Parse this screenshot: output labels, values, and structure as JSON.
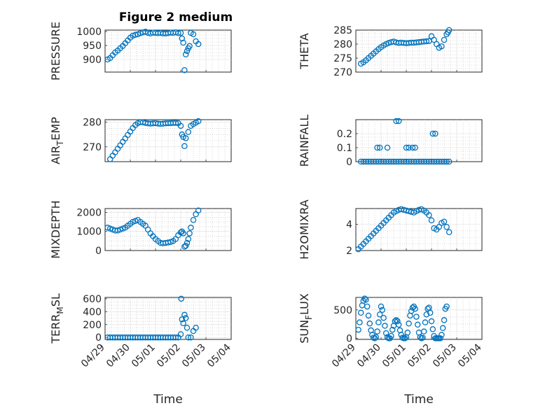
{
  "figure": {
    "title": "Figure 2 medium",
    "marker_color": "#0072BD"
  },
  "chart_data": [
    {
      "type": "scatter",
      "ylabel": "PRESSURE",
      "ylabel_sub": "",
      "ylabel_tail": "",
      "xlabel": "",
      "xlim": [
        0,
        5
      ],
      "ylim": [
        855,
        1005
      ],
      "yticks": [
        900,
        950,
        1000
      ],
      "xticks": [],
      "grid": true,
      "x": [
        0.1,
        0.2,
        0.3,
        0.4,
        0.5,
        0.6,
        0.7,
        0.8,
        0.9,
        1.0,
        1.1,
        1.2,
        1.3,
        1.4,
        1.5,
        1.6,
        1.7,
        1.8,
        1.9,
        2.0,
        2.1,
        2.2,
        2.3,
        2.4,
        2.5,
        2.6,
        2.7,
        2.8,
        2.9,
        3.0,
        3.05,
        3.1,
        3.15,
        3.2,
        3.25,
        3.3,
        3.35,
        3.4,
        3.5,
        3.6,
        3.7
      ],
      "y": [
        900,
        905,
        915,
        925,
        932,
        940,
        948,
        958,
        968,
        978,
        985,
        988,
        990,
        994,
        997,
        999,
        995,
        993,
        996,
        995,
        994,
        995,
        993,
        993,
        994,
        996,
        995,
        997,
        994,
        995,
        975,
        960,
        862,
        918,
        930,
        940,
        948,
        995,
        990,
        965,
        955
      ]
    },
    {
      "type": "scatter",
      "ylabel": "THETA",
      "ylabel_sub": "",
      "ylabel_tail": "",
      "xlabel": "",
      "xlim": [
        0,
        5
      ],
      "ylim": [
        270,
        285
      ],
      "yticks": [
        270,
        275,
        280,
        285
      ],
      "xticks": [],
      "grid": true,
      "x": [
        0.2,
        0.3,
        0.4,
        0.5,
        0.6,
        0.7,
        0.8,
        0.9,
        1.0,
        1.1,
        1.2,
        1.3,
        1.4,
        1.5,
        1.6,
        1.7,
        1.8,
        1.9,
        2.0,
        2.1,
        2.2,
        2.3,
        2.4,
        2.5,
        2.6,
        2.7,
        2.8,
        2.9,
        3.0,
        3.1,
        3.2,
        3.3,
        3.4,
        3.5,
        3.6,
        3.65,
        3.7
      ],
      "y": [
        273,
        273.5,
        274.2,
        275,
        275.8,
        276.6,
        277.4,
        278.2,
        278.9,
        279.5,
        280,
        280.4,
        280.7,
        280.9,
        280.6,
        280.4,
        280.5,
        280.4,
        280.3,
        280.4,
        280.5,
        280.5,
        280.6,
        280.7,
        280.8,
        280.9,
        281,
        281.1,
        282.8,
        281.5,
        280,
        278.7,
        279.2,
        281.5,
        283.5,
        284.2,
        285
      ]
    },
    {
      "type": "scatter",
      "ylabel": "AIR",
      "ylabel_sub": "T",
      "ylabel_tail": "EMP",
      "xlabel": "",
      "xlim": [
        0,
        5
      ],
      "ylim": [
        264,
        281
      ],
      "yticks": [
        270,
        280
      ],
      "xticks": [],
      "grid": true,
      "x": [
        0.2,
        0.3,
        0.4,
        0.5,
        0.6,
        0.7,
        0.8,
        0.9,
        1.0,
        1.1,
        1.2,
        1.3,
        1.4,
        1.5,
        1.6,
        1.7,
        1.8,
        1.9,
        2.0,
        2.1,
        2.2,
        2.3,
        2.4,
        2.5,
        2.6,
        2.7,
        2.8,
        2.9,
        3.0,
        3.05,
        3.1,
        3.15,
        3.2,
        3.3,
        3.4,
        3.5,
        3.6,
        3.7
      ],
      "y": [
        265,
        266.4,
        267.8,
        269.2,
        270.6,
        272,
        273.4,
        274.8,
        276.2,
        277.6,
        278.8,
        279.6,
        280,
        279.9,
        279.7,
        279.5,
        279.4,
        279.5,
        279.6,
        279.4,
        279.3,
        279.4,
        279.5,
        279.6,
        279.6,
        279.7,
        279.7,
        279.6,
        278.5,
        275,
        274,
        270.3,
        273.5,
        276,
        278.5,
        279.2,
        279.8,
        280.4
      ]
    },
    {
      "type": "scatter",
      "ylabel": "RAINFALL",
      "ylabel_sub": "",
      "ylabel_tail": "",
      "xlabel": "",
      "xlim": [
        0,
        5
      ],
      "ylim": [
        0,
        0.3
      ],
      "yticks": [
        0,
        0.1,
        0.2
      ],
      "xticks": [],
      "grid": true,
      "x": [
        0.2,
        0.3,
        0.4,
        0.5,
        0.6,
        0.7,
        0.8,
        0.9,
        1.0,
        1.1,
        1.2,
        1.3,
        1.4,
        1.5,
        1.6,
        1.7,
        1.8,
        1.9,
        2.0,
        2.1,
        2.2,
        2.3,
        2.4,
        2.5,
        2.6,
        2.7,
        2.8,
        2.9,
        3.0,
        3.1,
        3.2,
        3.3,
        3.4,
        3.5,
        3.6,
        3.7,
        0.85,
        0.95,
        1.25,
        1.6,
        1.7,
        2.0,
        2.1,
        2.25,
        2.35,
        3.05,
        3.15
      ],
      "y": [
        0,
        0,
        0,
        0,
        0,
        0,
        0,
        0,
        0,
        0,
        0,
        0,
        0,
        0,
        0,
        0,
        0,
        0,
        0,
        0,
        0,
        0,
        0,
        0,
        0,
        0,
        0,
        0,
        0,
        0,
        0,
        0,
        0,
        0,
        0,
        0,
        0.1,
        0.1,
        0.1,
        0.29,
        0.29,
        0.1,
        0.1,
        0.1,
        0.1,
        0.2,
        0.2
      ]
    },
    {
      "type": "scatter",
      "ylabel": "MIXDEPTH",
      "ylabel_sub": "",
      "ylabel_tail": "",
      "xlabel": "",
      "xlim": [
        0,
        5
      ],
      "ylim": [
        0,
        2200
      ],
      "yticks": [
        0,
        1000,
        2000
      ],
      "xticks": [],
      "grid": true,
      "x": [
        0.1,
        0.2,
        0.3,
        0.4,
        0.5,
        0.6,
        0.7,
        0.8,
        0.9,
        1.0,
        1.1,
        1.2,
        1.3,
        1.4,
        1.5,
        1.6,
        1.7,
        1.8,
        1.9,
        2.0,
        2.1,
        2.2,
        2.3,
        2.4,
        2.5,
        2.6,
        2.7,
        2.8,
        2.9,
        3.0,
        3.05,
        3.1,
        3.15,
        3.2,
        3.25,
        3.3,
        3.35,
        3.4,
        3.5,
        3.6,
        3.7
      ],
      "y": [
        1200,
        1150,
        1100,
        1050,
        1050,
        1100,
        1150,
        1200,
        1300,
        1400,
        1500,
        1550,
        1600,
        1500,
        1400,
        1300,
        1100,
        900,
        750,
        600,
        500,
        400,
        380,
        400,
        420,
        450,
        500,
        600,
        800,
        950,
        1000,
        900,
        200,
        250,
        400,
        600,
        900,
        1200,
        1600,
        1900,
        2100
      ]
    },
    {
      "type": "scatter",
      "ylabel": "H2OMIXRA",
      "ylabel_sub": "",
      "ylabel_tail": "",
      "xlabel": "",
      "xlim": [
        0,
        5
      ],
      "ylim": [
        2,
        5.2
      ],
      "yticks": [
        2,
        4
      ],
      "xticks": [],
      "grid": true,
      "x": [
        0.1,
        0.2,
        0.3,
        0.4,
        0.5,
        0.6,
        0.7,
        0.8,
        0.9,
        1.0,
        1.1,
        1.2,
        1.3,
        1.4,
        1.5,
        1.6,
        1.7,
        1.8,
        1.9,
        2.0,
        2.1,
        2.2,
        2.3,
        2.4,
        2.5,
        2.6,
        2.7,
        2.8,
        2.9,
        3.0,
        3.1,
        3.2,
        3.3,
        3.4,
        3.5,
        3.6,
        3.7
      ],
      "y": [
        2.1,
        2.3,
        2.5,
        2.7,
        2.9,
        3.1,
        3.3,
        3.5,
        3.7,
        3.9,
        4.1,
        4.3,
        4.5,
        4.7,
        4.9,
        5.0,
        5.1,
        5.15,
        5.1,
        5.05,
        5.0,
        4.95,
        4.9,
        5.0,
        5.1,
        5.15,
        5.05,
        4.9,
        4.7,
        4.3,
        3.7,
        3.6,
        3.8,
        4.1,
        4.2,
        3.8,
        3.4
      ]
    },
    {
      "type": "scatter",
      "ylabel": "TERR",
      "ylabel_sub": "M",
      "ylabel_tail": "SL",
      "xlabel": "Time",
      "xlim": [
        0,
        5
      ],
      "ylim": [
        -30,
        620
      ],
      "yticks": [
        0,
        200,
        400,
        600
      ],
      "xticks": [
        "04/29",
        "04/30",
        "05/01",
        "05/02",
        "05/03",
        "05/04"
      ],
      "grid": true,
      "x": [
        0.1,
        0.2,
        0.3,
        0.4,
        0.5,
        0.6,
        0.7,
        0.8,
        0.9,
        1.0,
        1.1,
        1.2,
        1.3,
        1.4,
        1.5,
        1.6,
        1.7,
        1.8,
        1.9,
        2.0,
        2.1,
        2.2,
        2.3,
        2.4,
        2.5,
        2.6,
        2.7,
        2.8,
        2.9,
        3.0,
        3.02,
        3.05,
        3.1,
        3.15,
        3.2,
        3.25,
        3.3,
        3.4,
        3.5,
        3.6
      ],
      "y": [
        0,
        0,
        0,
        0,
        0,
        0,
        0,
        0,
        0,
        0,
        0,
        0,
        0,
        0,
        0,
        0,
        0,
        0,
        0,
        0,
        0,
        0,
        0,
        0,
        0,
        0,
        0,
        0,
        0,
        50,
        600,
        280,
        220,
        350,
        300,
        150,
        0,
        0,
        100,
        150
      ]
    },
    {
      "type": "scatter",
      "ylabel": "SUN",
      "ylabel_sub": "F",
      "ylabel_tail": "LUX",
      "xlabel": "Time",
      "xlim": [
        0,
        5
      ],
      "ylim": [
        -20,
        720
      ],
      "yticks": [
        0,
        500
      ],
      "xticks": [
        "04/29",
        "04/30",
        "05/01",
        "05/02",
        "05/03",
        "05/04"
      ],
      "grid": true,
      "x": [
        0.1,
        0.15,
        0.2,
        0.25,
        0.3,
        0.35,
        0.4,
        0.45,
        0.5,
        0.55,
        0.6,
        0.65,
        0.7,
        0.75,
        0.8,
        0.85,
        0.9,
        0.95,
        1.0,
        1.05,
        1.1,
        1.15,
        1.2,
        1.25,
        1.3,
        1.35,
        1.4,
        1.45,
        1.5,
        1.55,
        1.6,
        1.65,
        1.7,
        1.75,
        1.8,
        1.85,
        1.9,
        1.95,
        2.0,
        2.05,
        2.1,
        2.15,
        2.2,
        2.25,
        2.3,
        2.35,
        2.4,
        2.45,
        2.5,
        2.55,
        2.6,
        2.65,
        2.7,
        2.75,
        2.8,
        2.85,
        2.9,
        2.95,
        3.0,
        3.05,
        3.1,
        3.15,
        3.2,
        3.25,
        3.3,
        3.35,
        3.4,
        3.45,
        3.5,
        3.55,
        3.6
      ],
      "y": [
        150,
        280,
        450,
        580,
        660,
        700,
        680,
        560,
        400,
        260,
        140,
        60,
        10,
        0,
        20,
        120,
        280,
        420,
        560,
        500,
        360,
        220,
        90,
        20,
        0,
        0,
        40,
        150,
        220,
        300,
        320,
        300,
        240,
        140,
        60,
        10,
        0,
        0,
        20,
        100,
        260,
        400,
        480,
        540,
        560,
        520,
        380,
        240,
        100,
        20,
        0,
        10,
        120,
        280,
        420,
        520,
        540,
        450,
        300,
        160,
        40,
        0,
        0,
        0,
        0,
        0,
        60,
        180,
        320,
        520,
        560
      ]
    }
  ]
}
